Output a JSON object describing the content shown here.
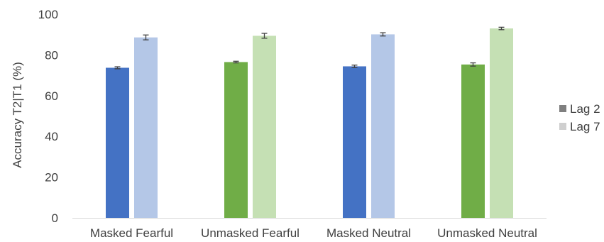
{
  "chart_data": {
    "type": "bar",
    "title": "",
    "xlabel": "",
    "ylabel": "Accuracy T2|T1 (%)",
    "ylim": [
      0,
      100
    ],
    "yticks": [
      0,
      20,
      40,
      60,
      80,
      100
    ],
    "grid": false,
    "legend_position": "right",
    "categories": [
      "Masked Fearful",
      "Unmasked Fearful",
      "Masked Neutral",
      "Unmasked Neutral"
    ],
    "series": [
      {
        "name": "Lag 2",
        "values": [
          73.7,
          76.5,
          74.4,
          75.3
        ],
        "errors": [
          0.5,
          0.4,
          0.6,
          0.8
        ]
      },
      {
        "name": "Lag 7",
        "values": [
          88.6,
          89.4,
          90.1,
          93.0
        ],
        "errors": [
          1.2,
          1.2,
          0.8,
          0.6
        ]
      }
    ],
    "bar_colors": [
      [
        "#4472c4",
        "#b4c7e7"
      ],
      [
        "#70ad47",
        "#c5e0b4"
      ],
      [
        "#4472c4",
        "#b4c7e7"
      ],
      [
        "#70ad47",
        "#c5e0b4"
      ]
    ],
    "legend_colors": [
      "#7f7f7f",
      "#cfcfcf"
    ],
    "error_bar_color": "#404040"
  }
}
